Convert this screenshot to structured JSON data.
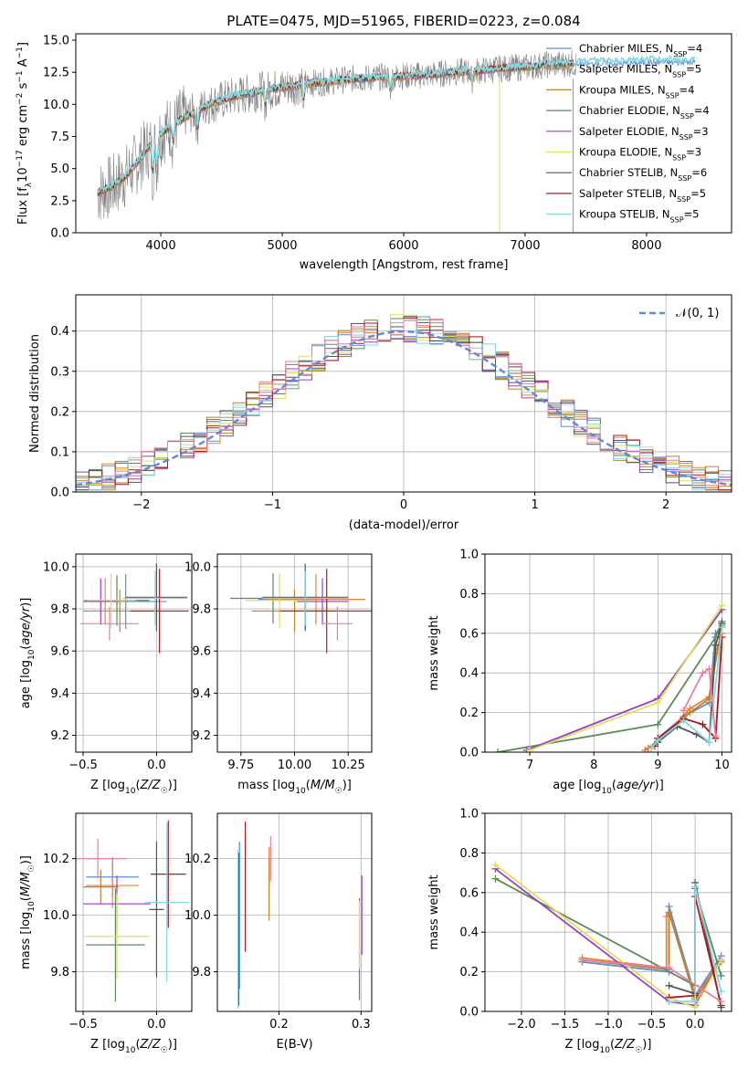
{
  "figure": {
    "title": "PLATE=0475, MJD=51965, FIBERID=0223, z=0.084"
  },
  "colors": {
    "Chabrier MILES": "#5b8bd9",
    "Salpeter MILES": "#e8823a",
    "Kroupa MILES": "#b8862b",
    "Chabrier ELODIE": "#5a8a5a",
    "Salpeter ELODIE": "#9b3fbf",
    "Kroupa ELODIE": "#d8e35a",
    "Chabrier STELIB": "#555555",
    "Salpeter STELIB": "#b01818",
    "Kroupa STELIB": "#86d8e0",
    "data": "#808080",
    "normal": "#5b8bd9",
    "pink": "#e87fa0"
  },
  "chart_data": [
    {
      "id": "spectrum",
      "type": "line",
      "title": "PLATE=0475, MJD=51965, FIBERID=0223, z=0.084",
      "xlabel": "wavelength [Angstrom, rest frame]",
      "ylabel": "Flux [f_λ 10^-17 erg cm^-2 s^-1 A^-1]",
      "xlim": [
        3300,
        8700
      ],
      "ylim": [
        0,
        15.5
      ],
      "xticks": [
        4000,
        5000,
        6000,
        7000,
        8000
      ],
      "yticks": [
        "0.0",
        "2.5",
        "5.0",
        "7.5",
        "10.0",
        "12.5",
        "15.0"
      ],
      "legend_position": "right",
      "legend": [
        {
          "name": "Chabrier MILES",
          "nssp": "4"
        },
        {
          "name": "Salpeter MILES",
          "nssp": "5"
        },
        {
          "name": "Kroupa MILES",
          "nssp": "4"
        },
        {
          "name": "Chabrier ELODIE",
          "nssp": "4"
        },
        {
          "name": "Salpeter ELODIE",
          "nssp": "3"
        },
        {
          "name": "Kroupa ELODIE",
          "nssp": "3"
        },
        {
          "name": "Chabrier STELIB",
          "nssp": "6"
        },
        {
          "name": "Salpeter STELIB",
          "nssp": "5"
        },
        {
          "name": "Kroupa STELIB",
          "nssp": "5"
        }
      ],
      "continuum": {
        "x": [
          3480,
          3600,
          3700,
          3800,
          3900,
          4000,
          4100,
          4200,
          4300,
          4400,
          4600,
          4800,
          5000,
          5200,
          5400,
          5600,
          5800,
          6000,
          6200,
          6400,
          6600,
          6800,
          7000,
          7200,
          7400,
          7600,
          7800,
          8000,
          8200,
          8400
        ],
        "y": [
          3.1,
          3.6,
          4.3,
          5.4,
          6.7,
          7.7,
          8.4,
          9.0,
          9.5,
          10.0,
          10.6,
          11.0,
          11.3,
          11.6,
          11.8,
          12.0,
          12.1,
          12.2,
          12.3,
          12.5,
          12.6,
          12.8,
          12.9,
          13.1,
          13.2,
          13.3,
          13.3,
          13.4,
          13.4,
          13.4
        ]
      }
    },
    {
      "id": "residuals",
      "type": "area",
      "xlabel": "(data-model)/error",
      "ylabel": "Normed distribution",
      "xlim": [
        -2.5,
        2.5
      ],
      "ylim": [
        0,
        0.49
      ],
      "xticks": [
        "-2",
        "-1",
        "0",
        "1",
        "2"
      ],
      "yticks": [
        "0.0",
        "0.1",
        "0.2",
        "0.3",
        "0.4"
      ],
      "legend": "𝒩(0, 1)",
      "legend_position": "top-right",
      "bin_width": 0.1,
      "bins_from": -2.5
    },
    {
      "id": "age-vs-Z",
      "type": "scatter",
      "xlabel": "Z [log10(Z/Z☉)]",
      "ylabel": "age  [log10(age/yr)]",
      "xlim": [
        -0.55,
        0.24
      ],
      "ylim": [
        9.12,
        10.06
      ],
      "xticks": [
        "-0.5",
        "0.0"
      ],
      "yticks": [
        "9.2",
        "9.4",
        "9.6",
        "9.8",
        "10.0"
      ],
      "points": [
        {
          "model": "Chabrier MILES",
          "x": -0.21,
          "xerr": 0.28,
          "y": 9.835,
          "yerr": 0.13
        },
        {
          "model": "Salpeter MILES",
          "x": -0.35,
          "xerr": 0.14,
          "y": 9.835,
          "yerr": 0.11
        },
        {
          "model": "Kroupa MILES",
          "x": -0.25,
          "xerr": 0.25,
          "y": 9.79,
          "yerr": 0.1
        },
        {
          "model": "Chabrier ELODIE",
          "x": -0.27,
          "xerr": 0.22,
          "y": 9.84,
          "yerr": 0.12
        },
        {
          "model": "Salpeter ELODIE",
          "x": -0.38,
          "xerr": 0.12,
          "y": 9.835,
          "yerr": 0.11
        },
        {
          "model": "Kroupa ELODIE",
          "x": -0.31,
          "xerr": 0.17,
          "y": 9.84,
          "yerr": 0.13
        },
        {
          "model": "Chabrier STELIB",
          "x": 0.0,
          "xerr": 0.21,
          "y": 9.855,
          "yerr": 0.16
        },
        {
          "model": "Salpeter STELIB",
          "x": 0.02,
          "xerr": 0.2,
          "y": 9.79,
          "yerr": 0.2
        },
        {
          "model": "Kroupa STELIB",
          "x": -0.01,
          "xerr": 0.22,
          "y": 9.85,
          "yerr": 0.13
        },
        {
          "model": "pink",
          "x": -0.32,
          "xerr": 0.2,
          "y": 9.73,
          "yerr": 0.08
        }
      ]
    },
    {
      "id": "age-vs-mass",
      "type": "scatter",
      "xlabel": "mass [log10(M/M☉)]",
      "ylabel": "",
      "xlim": [
        9.64,
        10.36
      ],
      "ylim": [
        9.12,
        10.06
      ],
      "xticks": [
        "9.75",
        "10.00",
        "10.25"
      ],
      "yticks": [
        "9.2",
        "9.4",
        "9.6",
        "9.8",
        "10.0"
      ],
      "points": [
        {
          "model": "Chabrier MILES",
          "x": 10.05,
          "xerr": 0.22,
          "y": 9.845,
          "yerr": 0.14
        },
        {
          "model": "Salpeter MILES",
          "x": 10.1,
          "xerr": 0.23,
          "y": 9.845,
          "yerr": 0.12
        },
        {
          "model": "Kroupa MILES",
          "x": 10.0,
          "xerr": 0.2,
          "y": 9.79,
          "yerr": 0.1
        },
        {
          "model": "Chabrier ELODIE",
          "x": 9.9,
          "xerr": 0.2,
          "y": 9.85,
          "yerr": 0.12
        },
        {
          "model": "Salpeter ELODIE",
          "x": 10.13,
          "xerr": 0.12,
          "y": 9.835,
          "yerr": 0.11
        },
        {
          "model": "Kroupa ELODIE",
          "x": 9.93,
          "xerr": 0.16,
          "y": 9.84,
          "yerr": 0.13
        },
        {
          "model": "Chabrier STELIB",
          "x": 10.05,
          "xerr": 0.2,
          "y": 9.855,
          "yerr": 0.16
        },
        {
          "model": "Salpeter STELIB",
          "x": 10.15,
          "xerr": 0.22,
          "y": 9.79,
          "yerr": 0.2
        },
        {
          "model": "Kroupa STELIB",
          "x": 10.05,
          "xerr": 0.2,
          "y": 9.85,
          "yerr": 0.13
        },
        {
          "model": "pink",
          "x": 10.2,
          "xerr": 0.07,
          "y": 9.73,
          "yerr": 0.08
        }
      ]
    },
    {
      "id": "weight-vs-age",
      "type": "line",
      "xlabel": "age  [log10(age/yr)]",
      "ylabel": "mass weight",
      "xlim": [
        6.3,
        10.15
      ],
      "ylim": [
        0,
        1.0
      ],
      "xticks": [
        "7",
        "8",
        "9",
        "10"
      ],
      "yticks": [
        "0.0",
        "0.2",
        "0.4",
        "0.6",
        "0.8",
        "1.0"
      ],
      "series": [
        {
          "model": "Chabrier MILES",
          "x": [
            8.9,
            9.0,
            9.4,
            9.8,
            9.9,
            10.0
          ],
          "y": [
            0.02,
            0.07,
            0.18,
            0.25,
            0.6,
            0.63
          ]
        },
        {
          "model": "Salpeter MILES",
          "x": [
            8.8,
            9.0,
            9.5,
            9.8,
            9.9,
            10.0
          ],
          "y": [
            0.01,
            0.05,
            0.22,
            0.28,
            0.5,
            0.6
          ]
        },
        {
          "model": "Kroupa MILES",
          "x": [
            8.85,
            9.0,
            9.5,
            9.8,
            10.0
          ],
          "y": [
            0.02,
            0.06,
            0.2,
            0.27,
            0.64
          ]
        },
        {
          "model": "Chabrier ELODIE",
          "x": [
            6.5,
            9.0,
            9.9,
            10.0
          ],
          "y": [
            0.0,
            0.14,
            0.58,
            0.66
          ]
        },
        {
          "model": "Salpeter ELODIE",
          "x": [
            6.95,
            9.0,
            10.0
          ],
          "y": [
            0.01,
            0.27,
            0.72
          ]
        },
        {
          "model": "Kroupa ELODIE",
          "x": [
            7.0,
            9.0,
            10.0
          ],
          "y": [
            0.01,
            0.25,
            0.74
          ]
        },
        {
          "model": "Chabrier STELIB",
          "x": [
            8.9,
            9.0,
            9.3,
            9.6,
            9.8,
            9.9,
            10.0
          ],
          "y": [
            0.02,
            0.05,
            0.13,
            0.09,
            0.05,
            0.54,
            0.65
          ]
        },
        {
          "model": "Salpeter STELIB",
          "x": [
            8.95,
            9.0,
            9.4,
            9.7,
            9.9,
            10.0
          ],
          "y": [
            0.03,
            0.07,
            0.17,
            0.14,
            0.07,
            0.58
          ]
        },
        {
          "model": "Kroupa STELIB",
          "x": [
            8.9,
            9.0,
            9.4,
            9.8,
            10.0
          ],
          "y": [
            0.02,
            0.06,
            0.16,
            0.05,
            0.63
          ]
        },
        {
          "model": "pink",
          "x": [
            9.4,
            9.7,
            9.8,
            9.9
          ],
          "y": [
            0.21,
            0.4,
            0.42,
            0.08
          ]
        }
      ]
    },
    {
      "id": "mass-vs-Z",
      "type": "scatter",
      "xlabel": "Z [log10(Z/Z☉)]",
      "ylabel": "mass [log10(M/M☉)]",
      "xlim": [
        -0.55,
        0.24
      ],
      "ylim": [
        9.66,
        10.36
      ],
      "xticks": [
        "-0.5",
        "0.0"
      ],
      "yticks": [
        "9.8",
        "10.0",
        "10.2"
      ],
      "points": [
        {
          "model": "Chabrier MILES",
          "x": -0.3,
          "xerr": 0.18,
          "y": 10.135,
          "yerr": 0.07
        },
        {
          "model": "Salpeter MILES",
          "x": -0.3,
          "xerr": 0.18,
          "y": 10.105,
          "yerr": 0.08
        },
        {
          "model": "Kroupa MILES",
          "x": -0.38,
          "xerr": 0.12,
          "y": 10.1,
          "yerr": 0.06
        },
        {
          "model": "Chabrier ELODIE",
          "x": -0.28,
          "xerr": 0.2,
          "y": 9.895,
          "yerr": 0.2
        },
        {
          "model": "Salpeter ELODIE",
          "x": -0.27,
          "xerr": 0.23,
          "y": 10.04,
          "yerr": 0.1
        },
        {
          "model": "Kroupa ELODIE",
          "x": -0.27,
          "xerr": 0.22,
          "y": 9.925,
          "yerr": 0.15
        },
        {
          "model": "Chabrier STELIB",
          "x": 0.0,
          "xerr": 0.05,
          "y": 10.02,
          "yerr": 0.24
        },
        {
          "model": "Salpeter STELIB",
          "x": 0.08,
          "xerr": 0.12,
          "y": 10.145,
          "yerr": 0.19
        },
        {
          "model": "Kroupa STELIB",
          "x": 0.07,
          "xerr": 0.15,
          "y": 10.045,
          "yerr": 0.28
        },
        {
          "model": "pink",
          "x": -0.4,
          "xerr": 0.2,
          "y": 10.2,
          "yerr": 0.07
        }
      ]
    },
    {
      "id": "mass-vs-EBV",
      "type": "scatter",
      "xlabel": "E(B-V)",
      "ylabel": "",
      "xlim": [
        0.125,
        0.313
      ],
      "ylim": [
        9.66,
        10.36
      ],
      "xticks": [
        "0.2",
        "0.3"
      ],
      "yticks": [
        "9.8",
        "10.0",
        "10.2"
      ],
      "points": [
        {
          "model": "Chabrier MILES",
          "x": 0.152,
          "yerr": 0.26,
          "y": 10.0
        },
        {
          "model": "Salpeter MILES",
          "x": 0.188,
          "yerr": 0.13,
          "y": 10.11
        },
        {
          "model": "Kroupa MILES",
          "x": 0.188,
          "yerr": 0.1,
          "y": 10.1
        },
        {
          "model": "Chabrier ELODIE",
          "x": 0.298,
          "yerr": 0.18,
          "y": 9.88
        },
        {
          "model": "Salpeter ELODIE",
          "x": 0.301,
          "yerr": 0.14,
          "y": 10.0
        },
        {
          "model": "Kroupa ELODIE",
          "x": 0.298,
          "yerr": 0.12,
          "y": 9.93
        },
        {
          "model": "Chabrier STELIB",
          "x": 0.151,
          "yerr": 0.27,
          "y": 9.95
        },
        {
          "model": "Salpeter STELIB",
          "x": 0.159,
          "yerr": 0.23,
          "y": 10.1
        },
        {
          "model": "Kroupa STELIB",
          "x": 0.15,
          "yerr": 0.28,
          "y": 9.95
        },
        {
          "model": "pink",
          "x": 0.19,
          "yerr": 0.08,
          "y": 10.2
        }
      ]
    },
    {
      "id": "weight-vs-Z",
      "type": "line",
      "xlabel": "Z [log10(Z/Z☉)]",
      "ylabel": "mass weight",
      "xlim": [
        -2.42,
        0.42
      ],
      "ylim": [
        0,
        1.0
      ],
      "xticks": [
        "-2.0",
        "-1.5",
        "-1.0",
        "-0.5",
        "0.0"
      ],
      "yticks": [
        "0.0",
        "0.2",
        "0.4",
        "0.6",
        "0.8",
        "1.0"
      ],
      "series": [
        {
          "model": "Chabrier MILES",
          "x": [
            -1.3,
            -0.3,
            -0.3,
            0.0,
            0.3
          ],
          "y": [
            0.25,
            0.2,
            0.53,
            0.08,
            0.28
          ]
        },
        {
          "model": "Salpeter MILES",
          "x": [
            -1.3,
            -0.33,
            -0.33,
            -0.3,
            0.0,
            0.3
          ],
          "y": [
            0.27,
            0.22,
            0.48,
            0.5,
            0.07,
            0.26
          ]
        },
        {
          "model": "Kroupa MILES",
          "x": [
            -1.3,
            -0.3,
            -0.3,
            0.0,
            0.3
          ],
          "y": [
            0.26,
            0.21,
            0.5,
            0.06,
            0.25
          ]
        },
        {
          "model": "Chabrier ELODIE",
          "x": [
            -2.3,
            0.0,
            0.0,
            0.3
          ],
          "y": [
            0.67,
            0.13,
            0.62,
            0.18
          ]
        },
        {
          "model": "Salpeter ELODIE",
          "x": [
            -2.3,
            -0.3,
            0.0,
            0.3
          ],
          "y": [
            0.72,
            0.05,
            0.03,
            0.26
          ]
        },
        {
          "model": "Kroupa ELODIE",
          "x": [
            -2.3,
            -0.3,
            0.0,
            0.3
          ],
          "y": [
            0.74,
            0.07,
            0.02,
            0.26
          ]
        },
        {
          "model": "Chabrier STELIB",
          "x": [
            -0.3,
            0.0,
            0.0,
            0.3
          ],
          "y": [
            0.13,
            0.09,
            0.65,
            0.02
          ]
        },
        {
          "model": "Salpeter STELIB",
          "x": [
            -0.3,
            0.0,
            0.0,
            0.3
          ],
          "y": [
            0.07,
            0.08,
            0.58,
            0.03
          ]
        },
        {
          "model": "Kroupa STELIB",
          "x": [
            -0.3,
            0.0,
            0.0,
            0.3
          ],
          "y": [
            0.05,
            0.05,
            0.63,
            0.1
          ]
        },
        {
          "model": "pink",
          "x": [
            -1.3,
            -0.3,
            0.3
          ],
          "y": [
            0.26,
            0.22,
            0.05
          ]
        }
      ]
    }
  ]
}
